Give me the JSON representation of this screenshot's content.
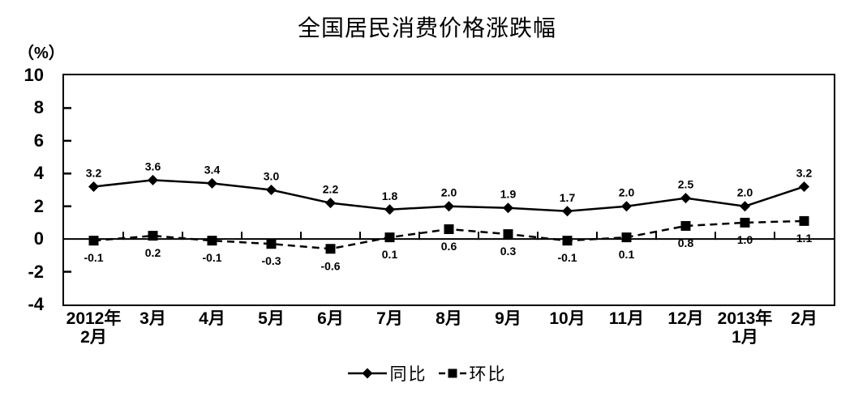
{
  "chart_data": {
    "type": "line",
    "title": "全国居民消费价格涨跌幅",
    "unit_label": "（%）",
    "categories": [
      {
        "lines": [
          "2012年",
          "2月"
        ]
      },
      {
        "lines": [
          "3月"
        ]
      },
      {
        "lines": [
          "4月"
        ]
      },
      {
        "lines": [
          "5月"
        ]
      },
      {
        "lines": [
          "6月"
        ]
      },
      {
        "lines": [
          "7月"
        ]
      },
      {
        "lines": [
          "8月"
        ]
      },
      {
        "lines": [
          "9月"
        ]
      },
      {
        "lines": [
          "10月"
        ]
      },
      {
        "lines": [
          "11月"
        ]
      },
      {
        "lines": [
          "12月"
        ]
      },
      {
        "lines": [
          "2013年",
          "1月"
        ]
      },
      {
        "lines": [
          "2月"
        ]
      }
    ],
    "series": [
      {
        "name": "同比",
        "marker": "diamond",
        "line_style": "solid",
        "values": [
          3.2,
          3.6,
          3.4,
          3.0,
          2.2,
          1.8,
          2.0,
          1.9,
          1.7,
          2.0,
          2.5,
          2.0,
          3.2
        ]
      },
      {
        "name": "环比",
        "marker": "square",
        "line_style": "dashed",
        "values": [
          -0.1,
          0.2,
          -0.1,
          -0.3,
          -0.6,
          0.1,
          0.6,
          0.3,
          -0.1,
          0.1,
          0.8,
          1.0,
          1.1
        ]
      }
    ],
    "y_ticks": [
      10,
      8,
      6,
      4,
      2,
      0,
      -2,
      -4
    ],
    "ylim": [
      -4,
      10
    ],
    "grid": false,
    "legend_position": "bottom",
    "colors": {
      "line": "#000000",
      "text": "#000000",
      "background": "#ffffff"
    }
  }
}
